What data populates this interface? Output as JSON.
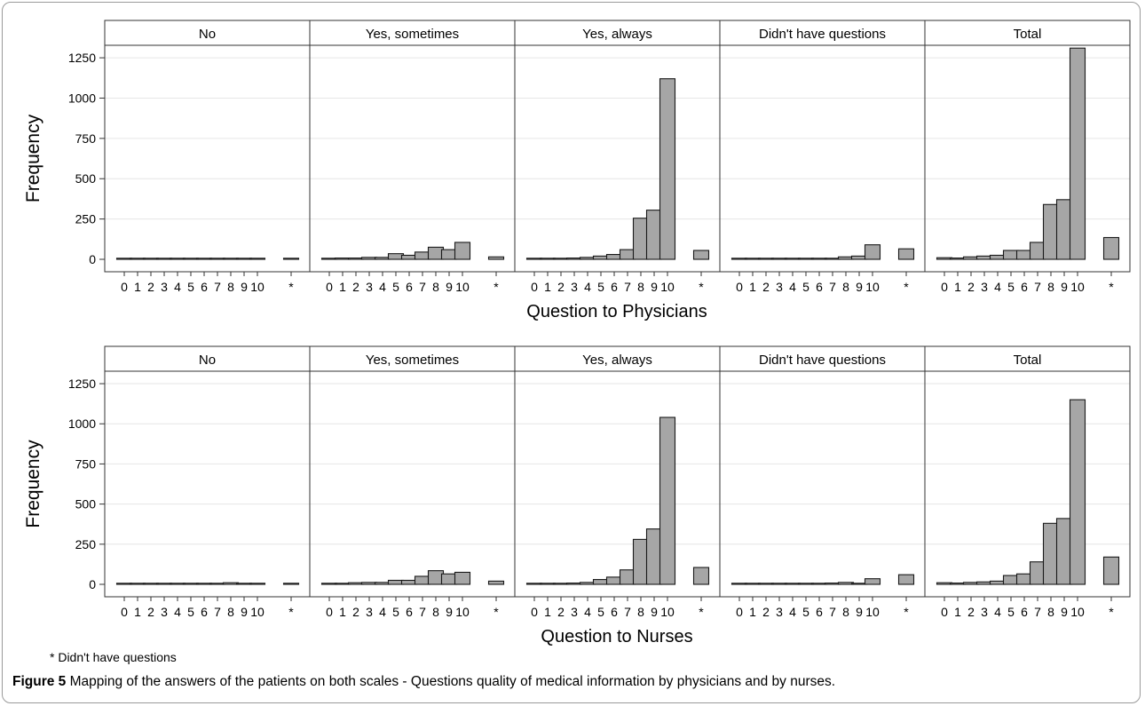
{
  "figure_label": "Figure 5",
  "caption_text": "Mapping of the answers of the patients on both scales - Questions quality of medical information by physicians and by nurses.",
  "footnote": "* Didn't have questions",
  "colors": {
    "bar_fill": "#a6a6a6",
    "bar_stroke": "#1a1a1a",
    "grid": "#e6e6e6",
    "panel_border": "#333333",
    "strip_fill": "#ffffff"
  },
  "chart_data": [
    {
      "type": "bar",
      "xlabel": "Question to Physicians",
      "ylabel": "Frequency",
      "ylim": [
        0,
        1300
      ],
      "yticks": [
        0,
        250,
        500,
        750,
        1000,
        1250
      ],
      "grid": true,
      "categories": [
        "0",
        "1",
        "2",
        "3",
        "4",
        "5",
        "6",
        "7",
        "8",
        "9",
        "10",
        "*"
      ],
      "tick_labels": [
        "0",
        "1",
        "2",
        "3",
        "4",
        "5",
        "6",
        "7",
        "8",
        "9",
        "10",
        "*"
      ],
      "panels": [
        {
          "name": "No",
          "values": [
            2,
            0,
            2,
            3,
            2,
            2,
            2,
            0,
            2,
            0,
            0,
            0
          ]
        },
        {
          "name": "Yes, sometimes",
          "values": [
            5,
            8,
            8,
            12,
            12,
            35,
            25,
            45,
            75,
            60,
            105,
            15
          ]
        },
        {
          "name": "Yes, always",
          "values": [
            3,
            3,
            5,
            8,
            12,
            20,
            30,
            60,
            255,
            305,
            1120,
            55
          ]
        },
        {
          "name": "Didn't have questions",
          "values": [
            2,
            0,
            0,
            2,
            0,
            5,
            2,
            5,
            15,
            20,
            90,
            65
          ]
        },
        {
          "name": "Total",
          "values": [
            10,
            8,
            15,
            20,
            25,
            55,
            55,
            105,
            340,
            370,
            1310,
            135
          ]
        }
      ]
    },
    {
      "type": "bar",
      "xlabel": "Question to Nurses",
      "ylabel": "Frequency",
      "ylim": [
        0,
        1300
      ],
      "yticks": [
        0,
        250,
        500,
        750,
        1000,
        1250
      ],
      "grid": true,
      "categories": [
        "0",
        "1",
        "2",
        "3",
        "4",
        "5",
        "6",
        "7",
        "8",
        "9",
        "10",
        "*"
      ],
      "tick_labels": [
        "0",
        "1",
        "2",
        "3",
        "4",
        "5",
        "6",
        "7",
        "8",
        "9",
        "10",
        "*"
      ],
      "panels": [
        {
          "name": "No",
          "values": [
            5,
            0,
            0,
            0,
            2,
            5,
            0,
            3,
            10,
            5,
            0,
            0
          ]
        },
        {
          "name": "Yes, sometimes",
          "values": [
            3,
            6,
            10,
            12,
            12,
            25,
            25,
            50,
            85,
            65,
            75,
            20
          ]
        },
        {
          "name": "Yes, always",
          "values": [
            2,
            2,
            3,
            8,
            12,
            30,
            45,
            90,
            280,
            345,
            1040,
            105
          ]
        },
        {
          "name": "Didn't have questions",
          "values": [
            2,
            0,
            0,
            2,
            0,
            2,
            0,
            8,
            12,
            5,
            35,
            60
          ]
        },
        {
          "name": "Total",
          "values": [
            10,
            8,
            12,
            15,
            20,
            55,
            65,
            140,
            380,
            410,
            1150,
            170
          ]
        }
      ]
    }
  ]
}
